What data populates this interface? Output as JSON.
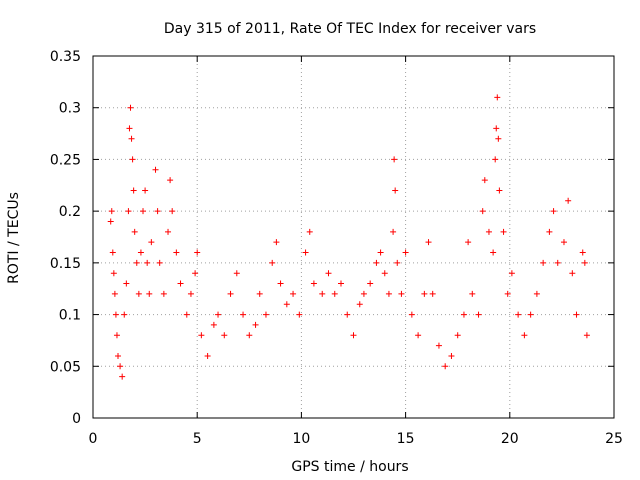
{
  "chart_data": {
    "type": "scatter",
    "title": "Day 315 of 2011, Rate Of TEC Index for receiver vars",
    "xlabel": "GPS time / hours",
    "ylabel": "ROTI / TECUs",
    "xlim": [
      0,
      25
    ],
    "ylim": [
      0,
      0.35
    ],
    "xticks": [
      0,
      5,
      10,
      15,
      20,
      25
    ],
    "yticks": [
      0,
      0.05,
      0.1,
      0.15,
      0.2,
      0.25,
      0.3,
      0.35
    ],
    "xtick_labels": [
      "0",
      "5",
      "10",
      "15",
      "20",
      "25"
    ],
    "ytick_labels": [
      "0",
      "0.05",
      "0.1",
      "0.15",
      "0.2",
      "0.25",
      "0.3",
      "0.35"
    ],
    "grid": true,
    "marker": "+",
    "color": "#ff0000",
    "series": [
      {
        "points": [
          [
            0.85,
            0.19
          ],
          [
            0.9,
            0.2
          ],
          [
            0.95,
            0.16
          ],
          [
            1.0,
            0.14
          ],
          [
            1.05,
            0.12
          ],
          [
            1.1,
            0.1
          ],
          [
            1.15,
            0.08
          ],
          [
            1.2,
            0.06
          ],
          [
            1.3,
            0.05
          ],
          [
            1.4,
            0.04
          ],
          [
            1.5,
            0.1
          ],
          [
            1.6,
            0.13
          ],
          [
            1.7,
            0.2
          ],
          [
            1.75,
            0.28
          ],
          [
            1.8,
            0.3
          ],
          [
            1.85,
            0.27
          ],
          [
            1.9,
            0.25
          ],
          [
            1.95,
            0.22
          ],
          [
            2.0,
            0.18
          ],
          [
            2.1,
            0.15
          ],
          [
            2.2,
            0.12
          ],
          [
            2.3,
            0.16
          ],
          [
            2.4,
            0.2
          ],
          [
            2.5,
            0.22
          ],
          [
            2.6,
            0.15
          ],
          [
            2.7,
            0.12
          ],
          [
            2.8,
            0.17
          ],
          [
            3.0,
            0.24
          ],
          [
            3.1,
            0.2
          ],
          [
            3.2,
            0.15
          ],
          [
            3.4,
            0.12
          ],
          [
            3.6,
            0.18
          ],
          [
            3.7,
            0.23
          ],
          [
            3.8,
            0.2
          ],
          [
            4.0,
            0.16
          ],
          [
            4.2,
            0.13
          ],
          [
            4.5,
            0.1
          ],
          [
            4.7,
            0.12
          ],
          [
            4.9,
            0.14
          ],
          [
            5.0,
            0.16
          ],
          [
            5.2,
            0.08
          ],
          [
            5.5,
            0.06
          ],
          [
            5.8,
            0.09
          ],
          [
            6.0,
            0.1
          ],
          [
            6.3,
            0.08
          ],
          [
            6.6,
            0.12
          ],
          [
            6.9,
            0.14
          ],
          [
            7.2,
            0.1
          ],
          [
            7.5,
            0.08
          ],
          [
            7.8,
            0.09
          ],
          [
            8.0,
            0.12
          ],
          [
            8.3,
            0.1
          ],
          [
            8.6,
            0.15
          ],
          [
            8.8,
            0.17
          ],
          [
            9.0,
            0.13
          ],
          [
            9.3,
            0.11
          ],
          [
            9.6,
            0.12
          ],
          [
            9.9,
            0.1
          ],
          [
            10.2,
            0.16
          ],
          [
            10.4,
            0.18
          ],
          [
            10.6,
            0.13
          ],
          [
            11.0,
            0.12
          ],
          [
            11.3,
            0.14
          ],
          [
            11.6,
            0.12
          ],
          [
            11.9,
            0.13
          ],
          [
            12.2,
            0.1
          ],
          [
            12.5,
            0.08
          ],
          [
            12.8,
            0.11
          ],
          [
            13.0,
            0.12
          ],
          [
            13.3,
            0.13
          ],
          [
            13.6,
            0.15
          ],
          [
            13.8,
            0.16
          ],
          [
            14.0,
            0.14
          ],
          [
            14.2,
            0.12
          ],
          [
            14.4,
            0.18
          ],
          [
            14.45,
            0.25
          ],
          [
            14.5,
            0.22
          ],
          [
            14.6,
            0.15
          ],
          [
            14.8,
            0.12
          ],
          [
            15.0,
            0.16
          ],
          [
            15.3,
            0.1
          ],
          [
            15.6,
            0.08
          ],
          [
            15.9,
            0.12
          ],
          [
            16.1,
            0.17
          ],
          [
            16.3,
            0.12
          ],
          [
            16.6,
            0.07
          ],
          [
            16.9,
            0.05
          ],
          [
            17.2,
            0.06
          ],
          [
            17.5,
            0.08
          ],
          [
            17.8,
            0.1
          ],
          [
            18.0,
            0.17
          ],
          [
            18.2,
            0.12
          ],
          [
            18.5,
            0.1
          ],
          [
            18.7,
            0.2
          ],
          [
            18.8,
            0.23
          ],
          [
            19.0,
            0.18
          ],
          [
            19.2,
            0.16
          ],
          [
            19.3,
            0.25
          ],
          [
            19.35,
            0.28
          ],
          [
            19.4,
            0.31
          ],
          [
            19.45,
            0.27
          ],
          [
            19.5,
            0.22
          ],
          [
            19.7,
            0.18
          ],
          [
            19.9,
            0.12
          ],
          [
            20.1,
            0.14
          ],
          [
            20.4,
            0.1
          ],
          [
            20.7,
            0.08
          ],
          [
            21.0,
            0.1
          ],
          [
            21.3,
            0.12
          ],
          [
            21.6,
            0.15
          ],
          [
            21.9,
            0.18
          ],
          [
            22.1,
            0.2
          ],
          [
            22.3,
            0.15
          ],
          [
            22.6,
            0.17
          ],
          [
            22.8,
            0.21
          ],
          [
            23.0,
            0.14
          ],
          [
            23.2,
            0.1
          ],
          [
            23.5,
            0.16
          ],
          [
            23.6,
            0.15
          ],
          [
            23.7,
            0.08
          ]
        ]
      }
    ]
  }
}
